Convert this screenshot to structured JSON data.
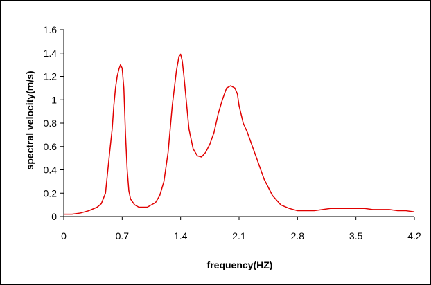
{
  "chart_data": {
    "type": "line",
    "title": "",
    "xlabel": "frequency(HZ)",
    "ylabel": "spectral velocity(m/s)",
    "xlim": [
      0,
      4.2
    ],
    "ylim": [
      0,
      1.6
    ],
    "x_ticks": [
      "0",
      "0.7",
      "1.4",
      "2.1",
      "2.8",
      "3.5",
      "4.2"
    ],
    "y_ticks": [
      "0",
      "0.2",
      "0.4",
      "0.6",
      "0.8",
      "1",
      "1.2",
      "1.4",
      "1.6"
    ],
    "grid": false,
    "legend": "none",
    "series": [
      {
        "color": "#e00000",
        "x": [
          0,
          0.1,
          0.2,
          0.3,
          0.4,
          0.45,
          0.5,
          0.55,
          0.58,
          0.6,
          0.62,
          0.64,
          0.66,
          0.68,
          0.7,
          0.72,
          0.74,
          0.76,
          0.78,
          0.8,
          0.85,
          0.9,
          1.0,
          1.1,
          1.15,
          1.2,
          1.25,
          1.3,
          1.35,
          1.38,
          1.4,
          1.42,
          1.44,
          1.46,
          1.48,
          1.5,
          1.55,
          1.6,
          1.65,
          1.7,
          1.75,
          1.8,
          1.85,
          1.9,
          1.95,
          2.0,
          2.05,
          2.08,
          2.1,
          2.15,
          2.2,
          2.3,
          2.4,
          2.5,
          2.6,
          2.7,
          2.8,
          2.9,
          3.0,
          3.1,
          3.2,
          3.3,
          3.4,
          3.5,
          3.6,
          3.7,
          3.8,
          3.9,
          4.0,
          4.1,
          4.2
        ],
        "y": [
          0.02,
          0.02,
          0.03,
          0.05,
          0.08,
          0.11,
          0.2,
          0.55,
          0.75,
          0.95,
          1.1,
          1.2,
          1.26,
          1.3,
          1.27,
          1.1,
          0.7,
          0.4,
          0.22,
          0.15,
          0.1,
          0.08,
          0.08,
          0.12,
          0.18,
          0.3,
          0.55,
          0.95,
          1.25,
          1.37,
          1.39,
          1.33,
          1.2,
          1.05,
          0.9,
          0.75,
          0.58,
          0.52,
          0.51,
          0.55,
          0.62,
          0.72,
          0.88,
          1.0,
          1.1,
          1.12,
          1.1,
          1.05,
          0.95,
          0.8,
          0.72,
          0.52,
          0.32,
          0.18,
          0.1,
          0.07,
          0.05,
          0.05,
          0.05,
          0.06,
          0.07,
          0.07,
          0.07,
          0.07,
          0.07,
          0.06,
          0.06,
          0.06,
          0.05,
          0.05,
          0.04
        ]
      }
    ]
  }
}
